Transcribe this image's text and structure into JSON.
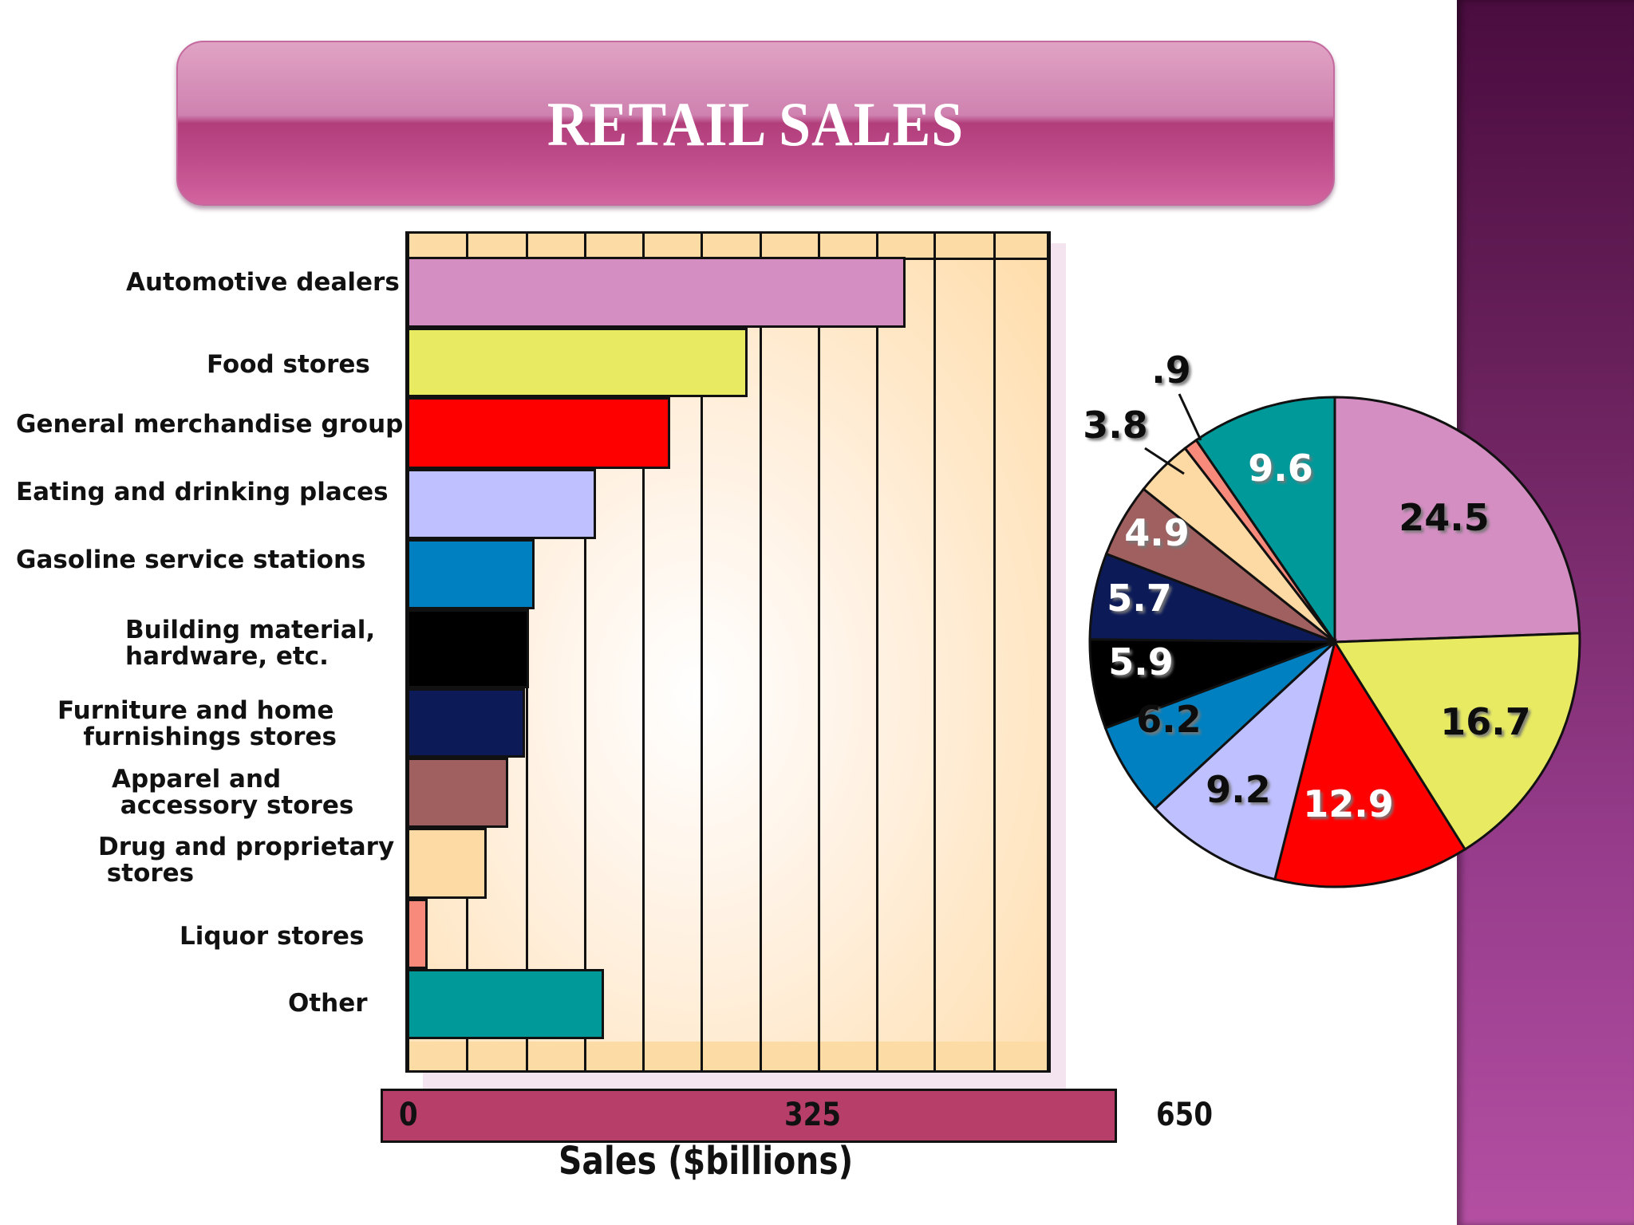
{
  "title": "RETAIL SALES",
  "bar_chart": {
    "categories": [
      {
        "label": "Automotive dealers",
        "lines": [
          "Automotive dealers"
        ],
        "color": "#d48ec2"
      },
      {
        "label": "Food stores",
        "lines": [
          "Food stores"
        ],
        "color": "#e8eb62"
      },
      {
        "label": "General merchandise group",
        "lines": [
          "General merchandise group"
        ],
        "color": "#ff0000"
      },
      {
        "label": "Eating and drinking places",
        "lines": [
          "Eating and drinking places"
        ],
        "color": "#bfc0ff"
      },
      {
        "label": "Gasoline service stations",
        "lines": [
          "Gasoline service stations"
        ],
        "color": "#0080c0"
      },
      {
        "label": "Building material, hardware, etc.",
        "lines": [
          "Building material,",
          "hardware, etc."
        ],
        "color": "#000000"
      },
      {
        "label": "Furniture and home furnishings stores",
        "lines": [
          "Furniture and home",
          "   furnishings stores"
        ],
        "color": "#0c1b58"
      },
      {
        "label": "Apparel and accessory stores",
        "lines": [
          "Apparel and",
          " accessory stores"
        ],
        "color": "#a06060"
      },
      {
        "label": "Drug and proprietary stores",
        "lines": [
          "Drug and proprietary",
          " stores"
        ],
        "color": "#fdd9a3"
      },
      {
        "label": "Liquor stores",
        "lines": [
          "Liquor stores"
        ],
        "color": "#f88a7c"
      },
      {
        "label": "Other",
        "lines": [
          "Other"
        ],
        "color": "#00999a"
      }
    ],
    "axis": {
      "ticks": [
        "0",
        "325",
        "650"
      ],
      "label": "Sales ($billions)"
    }
  },
  "pie": {
    "labels": [
      "24.5",
      "16.7",
      "12.9",
      "9.2",
      "6.2",
      "5.9",
      "5.7",
      "4.9",
      "3.8",
      ".9",
      "9.6"
    ]
  },
  "chart_data": [
    {
      "type": "bar",
      "orientation": "horizontal",
      "title": "RETAIL SALES",
      "xlabel": "Sales ($billions)",
      "ylabel": "",
      "xlim": [
        0,
        650
      ],
      "xticks": [
        0,
        325,
        650
      ],
      "grid": true,
      "categories": [
        "Automotive dealers",
        "Food stores",
        "General merchandise group",
        "Eating and drinking places",
        "Gasoline service stations",
        "Building material, hardware, etc.",
        "Furniture and home furnishings stores",
        "Apparel and accessory stores",
        "Drug and proprietary stores",
        "Liquor stores",
        "Other"
      ],
      "values": [
        532,
        363,
        280,
        200,
        134,
        128,
        124,
        106,
        83,
        20,
        209
      ]
    },
    {
      "type": "pie",
      "title": "Share of retail sales (%)",
      "categories": [
        "Automotive dealers",
        "Food stores",
        "General merchandise group",
        "Eating and drinking places",
        "Gasoline service stations",
        "Building material, hardware, etc.",
        "Furniture and home furnishings stores",
        "Apparel and accessory stores",
        "Drug and proprietary stores",
        "Liquor stores",
        "Other"
      ],
      "values": [
        24.5,
        16.7,
        12.9,
        9.2,
        6.2,
        5.9,
        5.7,
        4.9,
        3.8,
        0.9,
        9.6
      ],
      "colors": [
        "#d48ec2",
        "#e8eb62",
        "#ff0000",
        "#bfc0ff",
        "#0080c0",
        "#000000",
        "#0c1b58",
        "#a06060",
        "#fdd9a3",
        "#f88a7c",
        "#00999a"
      ]
    }
  ]
}
